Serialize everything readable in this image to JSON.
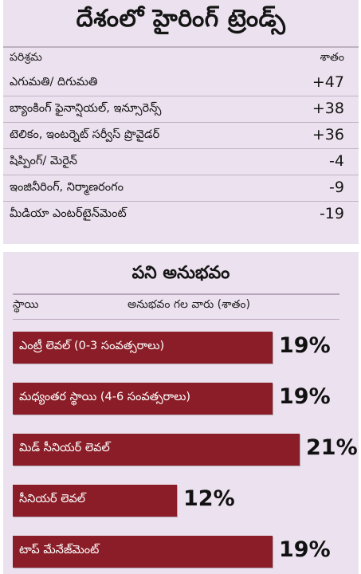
{
  "hiring": {
    "title": "దేశంలో హైరింగ్ ట్రెండ్స్",
    "header_label": "పరిశ్రమ",
    "header_value": "శాతం",
    "rows": [
      {
        "label": "ఎగుమతి/ దిగుమతి",
        "value": "+47"
      },
      {
        "label": "బ్యాంకింగ్ ఫైనాన్షియల్, ఇన్సూరెన్స్",
        "value": "+38"
      },
      {
        "label": "టెలికం, ఇంటర్నెట్ సర్వీస్ ప్రొవైడర్",
        "value": "+36"
      },
      {
        "label": "షిప్పింగ్/ మెరైన్",
        "value": "-4"
      },
      {
        "label": "ఇంజినీరింగ్, నిర్మాణరంగం",
        "value": "-9"
      },
      {
        "label": "మీడియా ఎంటర్‌టైన్‌మెంట్",
        "value": "-19"
      }
    ]
  },
  "chart_data": {
    "type": "bar",
    "title": "పని అనుభవం",
    "xlabel": "స్థాయి",
    "ylabel": "అనుభవం గల వారు (శాతం)",
    "categories": [
      "ఎంట్రీ లెవల్ (0-3 సంవత్సరాలు)",
      "మధ్యంతర స్థాయి (4-6 సంవత్సరాలు)",
      "మిడ్ సీనియర్ లెవల్",
      "సీనియర్ లెవల్",
      "టాప్ మేనేజ్‌మెంట్"
    ],
    "values": [
      19,
      19,
      21,
      12,
      19
    ],
    "value_labels": [
      "19%",
      "19%",
      "21%",
      "12%",
      "19%"
    ],
    "orientation": "horizontal",
    "bar_color": "#8a1d27"
  }
}
